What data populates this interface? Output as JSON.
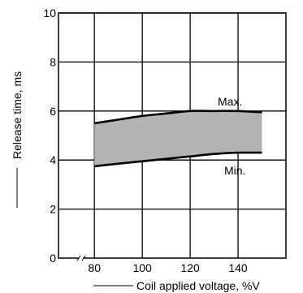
{
  "chart_data": {
    "type": "area",
    "xlabel": "Coil applied voltage, %V",
    "ylabel": "Release time, ms",
    "xlim": [
      65,
      160
    ],
    "ylim": [
      0,
      10
    ],
    "xticks": [
      80,
      100,
      120,
      140
    ],
    "yticks": [
      0,
      2,
      4,
      6,
      8,
      10
    ],
    "grid": true,
    "axis_break": "x",
    "fill_color": "#b3b3b3",
    "series": [
      {
        "name": "Max.",
        "x": [
          80,
          90,
          100,
          110,
          120,
          130,
          140,
          150
        ],
        "y": [
          5.5,
          5.65,
          5.8,
          5.9,
          6.0,
          6.0,
          6.0,
          5.95
        ]
      },
      {
        "name": "Min.",
        "x": [
          80,
          90,
          100,
          110,
          120,
          130,
          140,
          150
        ],
        "y": [
          3.75,
          3.85,
          3.95,
          4.05,
          4.15,
          4.25,
          4.3,
          4.3
        ]
      }
    ]
  }
}
